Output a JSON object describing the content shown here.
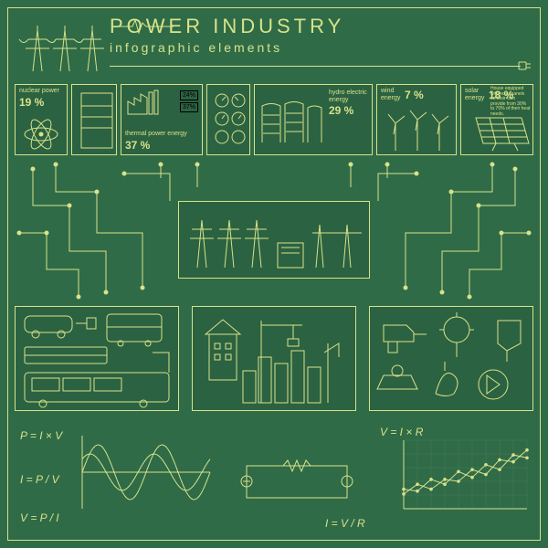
{
  "colors": {
    "background": "#2f6b47",
    "line": "#d8e28a",
    "text": "#d8e28a",
    "panel_bg": "rgba(0,0,0,0.08)"
  },
  "header": {
    "title": "POWER INDUSTRY",
    "subtitle": "infographic elements"
  },
  "stats": {
    "nuclear": {
      "label": "nuclear power",
      "pct": "19 %"
    },
    "thermal": {
      "label": "thermal power energy",
      "pct": "37 %"
    },
    "bars": {
      "b1": "24%",
      "b2": "37%"
    },
    "hydro": {
      "label": "hydro electric energy",
      "pct": "29 %"
    },
    "wind": {
      "label": "wind energy",
      "pct": "7 %"
    },
    "solar": {
      "label": "solar energy",
      "pct": "18 %",
      "note": "House equipped with solar panels on their own provide from 30% to 70% of their heat needs."
    }
  },
  "formulas": {
    "f1": "P = I × V",
    "f2": "I = P / V",
    "f3": "V = P / I",
    "f4": "V = I × R",
    "f5": "I = V / R"
  },
  "line_chart": {
    "type": "line",
    "series1": [
      15,
      25,
      20,
      30,
      28,
      40,
      35,
      50,
      48,
      60
    ],
    "series2": [
      20,
      18,
      30,
      25,
      38,
      32,
      45,
      40,
      55,
      52
    ],
    "ylim": [
      0,
      70
    ],
    "grid_color": "#4a7a5c"
  },
  "sine": {
    "type": "waveform",
    "amplitude1": 30,
    "amplitude2": 20,
    "periods": 2
  }
}
